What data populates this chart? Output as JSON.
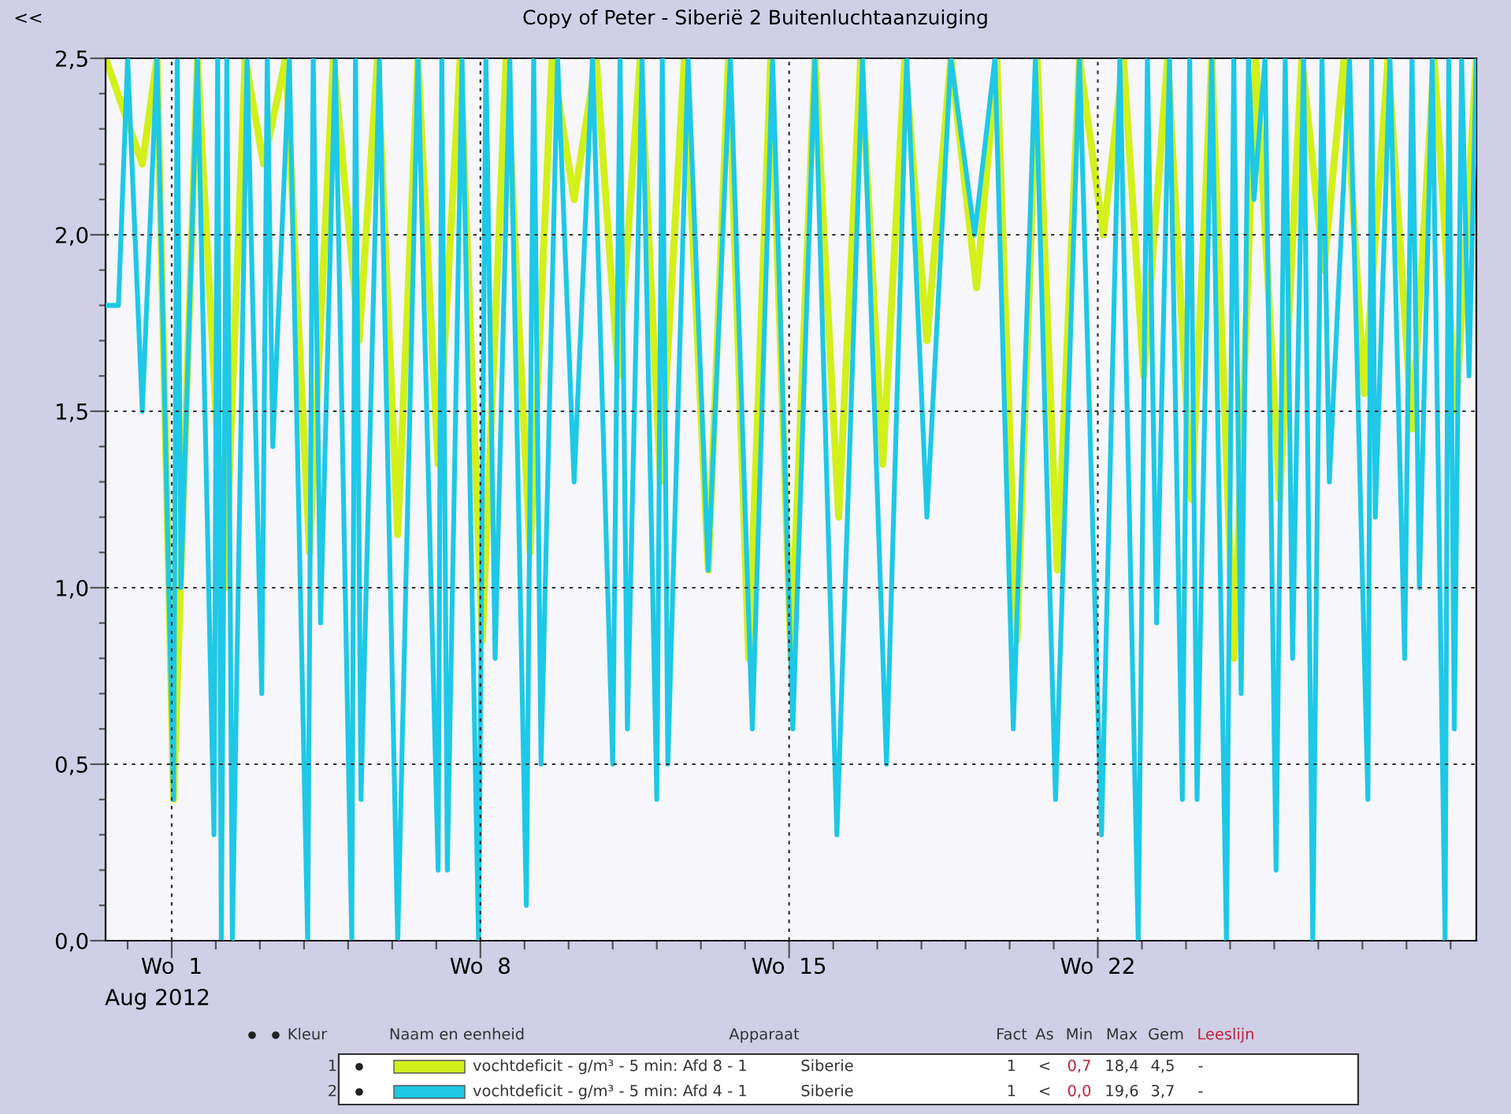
{
  "chart_data": {
    "type": "line",
    "title": "Copy of Peter - Siberië 2 Buitenluchtaanzuiging",
    "xlim": [
      "2012-07-30T12:00",
      "2012-08-30T14:00"
    ],
    "ylim": [
      0,
      2.5
    ],
    "xticks": [
      {
        "value": "2012-07-31",
        "label": null
      },
      {
        "value": "2012-08-01",
        "label": "Wo  1"
      },
      {
        "value": "2012-08-02",
        "label": null
      },
      {
        "value": "2012-08-03",
        "label": null
      },
      {
        "value": "2012-08-04",
        "label": null
      },
      {
        "value": "2012-08-05",
        "label": null
      },
      {
        "value": "2012-08-06",
        "label": null
      },
      {
        "value": "2012-08-07",
        "label": null
      },
      {
        "value": "2012-08-08",
        "label": "Wo  8"
      },
      {
        "value": "2012-08-09",
        "label": null
      },
      {
        "value": "2012-08-10",
        "label": null
      },
      {
        "value": "2012-08-11",
        "label": null
      },
      {
        "value": "2012-08-12",
        "label": null
      },
      {
        "value": "2012-08-13",
        "label": null
      },
      {
        "value": "2012-08-14",
        "label": null
      },
      {
        "value": "2012-08-15",
        "label": "Wo  15"
      },
      {
        "value": "2012-08-16",
        "label": null
      },
      {
        "value": "2012-08-17",
        "label": null
      },
      {
        "value": "2012-08-18",
        "label": null
      },
      {
        "value": "2012-08-19",
        "label": null
      },
      {
        "value": "2012-08-20",
        "label": null
      },
      {
        "value": "2012-08-21",
        "label": null
      },
      {
        "value": "2012-08-22",
        "label": "Wo  22"
      },
      {
        "value": "2012-08-23",
        "label": null
      },
      {
        "value": "2012-08-24",
        "label": null
      },
      {
        "value": "2012-08-25",
        "label": null
      },
      {
        "value": "2012-08-26",
        "label": null
      },
      {
        "value": "2012-08-27",
        "label": null
      },
      {
        "value": "2012-08-28",
        "label": null
      },
      {
        "value": "2012-08-29",
        "label": null
      },
      {
        "value": "2012-08-30",
        "label": null
      }
    ],
    "yticks": [
      {
        "value": 0,
        "label": "0,0"
      },
      {
        "value": 0.1,
        "label": null
      },
      {
        "value": 0.2,
        "label": null
      },
      {
        "value": 0.3,
        "label": null
      },
      {
        "value": 0.4,
        "label": null
      },
      {
        "value": 0.5,
        "label": "0,5"
      },
      {
        "value": 0.6,
        "label": null
      },
      {
        "value": 0.7,
        "label": null
      },
      {
        "value": 0.8,
        "label": null
      },
      {
        "value": 0.9,
        "label": null
      },
      {
        "value": 1.0,
        "label": "1,0"
      },
      {
        "value": 1.1,
        "label": null
      },
      {
        "value": 1.2,
        "label": null
      },
      {
        "value": 1.3,
        "label": null
      },
      {
        "value": 1.4,
        "label": null
      },
      {
        "value": 1.5,
        "label": "1,5"
      },
      {
        "value": 1.6,
        "label": null
      },
      {
        "value": 1.7,
        "label": null
      },
      {
        "value": 1.8,
        "label": null
      },
      {
        "value": 1.9,
        "label": null
      },
      {
        "value": 2.0,
        "label": "2,0"
      },
      {
        "value": 2.1,
        "label": null
      },
      {
        "value": 2.2,
        "label": null
      },
      {
        "value": 2.3,
        "label": null
      },
      {
        "value": 2.4,
        "label": null
      },
      {
        "value": 2.5,
        "label": "2,5"
      }
    ],
    "grid": true,
    "legend": "bottom",
    "annotations": [
      "<<",
      "Aug 2012",
      "Kleur",
      "Naam en eenheid",
      "Apparaat",
      "Fact",
      "As",
      "Min",
      "Max",
      "Gem",
      "Leeslijn",
      "1",
      "Siberie",
      "1",
      "<",
      "0,7",
      "18,4",
      "4,5",
      "-",
      "2",
      "Siberie",
      "1",
      "<",
      "0,0",
      "19,6",
      "3,7",
      "-"
    ],
    "series": [
      {
        "name": "vochtdeficit - g/m³ - 5 min: Afd 8 - 1",
        "color": "#d2f01a",
        "x": [
          "2012-07-30T12:00",
          "2012-07-31T08:00",
          "2012-07-31T16:00",
          "2012-08-01T01:00",
          "2012-08-01T14:00",
          "2012-08-02T05:00",
          "2012-08-02T16:00",
          "2012-08-03T02:00",
          "2012-08-03T14:00",
          "2012-08-04T03:00",
          "2012-08-04T16:00",
          "2012-08-05T06:00",
          "2012-08-05T16:00",
          "2012-08-06T03:00",
          "2012-08-06T14:00",
          "2012-08-07T01:00",
          "2012-08-07T13:00",
          "2012-08-08T01:00",
          "2012-08-08T14:00",
          "2012-08-09T03:00",
          "2012-08-09T15:00",
          "2012-08-10T03:00",
          "2012-08-10T15:00",
          "2012-08-11T03:00",
          "2012-08-11T15:00",
          "2012-08-12T02:00",
          "2012-08-12T15:00",
          "2012-08-13T04:00",
          "2012-08-13T15:00",
          "2012-08-14T02:00",
          "2012-08-14T14:00",
          "2012-08-15T01:00",
          "2012-08-15T14:00",
          "2012-08-16T03:00",
          "2012-08-16T15:00",
          "2012-08-17T03:00",
          "2012-08-17T15:00",
          "2012-08-18T03:00",
          "2012-08-18T16:00",
          "2012-08-19T06:00",
          "2012-08-19T17:00",
          "2012-08-20T04:00",
          "2012-08-20T15:00",
          "2012-08-21T02:00",
          "2012-08-21T14:00",
          "2012-08-22T03:00",
          "2012-08-22T14:00",
          "2012-08-23T01:00",
          "2012-08-23T14:00",
          "2012-08-24T03:00",
          "2012-08-24T14:00",
          "2012-08-25T02:00",
          "2012-08-25T14:00",
          "2012-08-26T03:00",
          "2012-08-26T15:00",
          "2012-08-27T03:00",
          "2012-08-27T14:00",
          "2012-08-28T01:00",
          "2012-08-28T14:00",
          "2012-08-29T03:00",
          "2012-08-29T15:00",
          "2012-08-30T03:00",
          "2012-08-30T14:00"
        ],
        "values": [
          2.5,
          2.2,
          2.5,
          0.4,
          2.5,
          1.0,
          2.5,
          2.2,
          2.5,
          1.1,
          2.5,
          1.7,
          2.5,
          1.15,
          2.5,
          1.35,
          2.5,
          0.85,
          2.5,
          1.1,
          2.5,
          2.1,
          2.5,
          1.6,
          2.5,
          1.3,
          2.5,
          1.05,
          2.5,
          0.8,
          2.5,
          0.8,
          2.5,
          1.2,
          2.5,
          1.35,
          2.5,
          1.7,
          2.5,
          1.85,
          2.5,
          0.85,
          2.5,
          1.05,
          2.5,
          2.0,
          2.5,
          1.6,
          2.5,
          1.25,
          2.5,
          0.8,
          2.5,
          1.25,
          2.5,
          1.9,
          2.5,
          1.55,
          2.5,
          1.45,
          2.5,
          1.5,
          2.5
        ]
      },
      {
        "name": "vochtdeficit - g/m³ - 5 min: Afd 4 - 1",
        "color": "#1ec8e6",
        "x": [
          "2012-07-30T12:00",
          "2012-07-30T19:00",
          "2012-07-31T00:00",
          "2012-07-31T08:00",
          "2012-07-31T16:00",
          "2012-08-01T01:00",
          "2012-08-01T03:00",
          "2012-08-01T05:00",
          "2012-08-01T14:00",
          "2012-08-01T23:00",
          "2012-08-02T01:00",
          "2012-08-02T03:00",
          "2012-08-02T06:00",
          "2012-08-02T09:00",
          "2012-08-02T17:00",
          "2012-08-03T01:00",
          "2012-08-03T04:00",
          "2012-08-03T07:00",
          "2012-08-03T16:00",
          "2012-08-04T02:00",
          "2012-08-04T05:00",
          "2012-08-04T09:00",
          "2012-08-04T17:00",
          "2012-08-05T02:00",
          "2012-08-05T04:00",
          "2012-08-05T07:00",
          "2012-08-05T17:00",
          "2012-08-06T03:00",
          "2012-08-06T14:00",
          "2012-08-07T01:00",
          "2012-08-07T03:00",
          "2012-08-07T06:00",
          "2012-08-07T14:00",
          "2012-08-07T23:00",
          "2012-08-08T03:00",
          "2012-08-08T08:00",
          "2012-08-08T16:00",
          "2012-08-09T01:00",
          "2012-08-09T05:00",
          "2012-08-09T09:00",
          "2012-08-09T18:00",
          "2012-08-10T03:00",
          "2012-08-10T13:00",
          "2012-08-11T00:00",
          "2012-08-11T04:00",
          "2012-08-11T08:00",
          "2012-08-11T16:00",
          "2012-08-12T00:00",
          "2012-08-12T03:00",
          "2012-08-12T06:00",
          "2012-08-12T17:00",
          "2012-08-13T04:00",
          "2012-08-13T16:00",
          "2012-08-14T04:00",
          "2012-08-14T15:00",
          "2012-08-15T02:00",
          "2012-08-15T14:00",
          "2012-08-16T02:00",
          "2012-08-16T16:00",
          "2012-08-17T05:00",
          "2012-08-17T16:00",
          "2012-08-18T03:00",
          "2012-08-18T16:00",
          "2012-08-19T05:00",
          "2012-08-19T16:00",
          "2012-08-20T02:00",
          "2012-08-20T14:00",
          "2012-08-21T01:00",
          "2012-08-21T14:00",
          "2012-08-22T02:00",
          "2012-08-22T12:00",
          "2012-08-22T22:00",
          "2012-08-23T03:00",
          "2012-08-23T08:00",
          "2012-08-23T15:00",
          "2012-08-23T22:00",
          "2012-08-24T02:00",
          "2012-08-24T06:00",
          "2012-08-24T14:00",
          "2012-08-24T22:00",
          "2012-08-25T02:00",
          "2012-08-25T06:00",
          "2012-08-25T10:00",
          "2012-08-25T13:00",
          "2012-08-25T19:00",
          "2012-08-26T01:00",
          "2012-08-26T06:00",
          "2012-08-26T10:00",
          "2012-08-26T16:00",
          "2012-08-26T21:00",
          "2012-08-27T02:00",
          "2012-08-27T06:00",
          "2012-08-27T17:00",
          "2012-08-28T03:00",
          "2012-08-28T05:00",
          "2012-08-28T07:00",
          "2012-08-28T15:00",
          "2012-08-28T23:00",
          "2012-08-29T03:00",
          "2012-08-29T07:00",
          "2012-08-29T14:00",
          "2012-08-29T21:00",
          "2012-08-29T23:00",
          "2012-08-30T02:00",
          "2012-08-30T06:00",
          "2012-08-30T10:00",
          "2012-08-30T14:00"
        ],
        "values": [
          1.8,
          1.8,
          2.5,
          1.5,
          2.5,
          0.4,
          2.5,
          1.0,
          2.5,
          0.3,
          2.5,
          0.0,
          2.5,
          0.0,
          2.5,
          0.7,
          2.5,
          1.4,
          2.5,
          0.0,
          2.5,
          0.9,
          2.5,
          0.0,
          2.5,
          0.4,
          2.5,
          0.0,
          2.5,
          0.2,
          2.5,
          0.2,
          2.5,
          0.0,
          2.5,
          0.8,
          2.5,
          0.1,
          2.5,
          0.5,
          2.5,
          1.3,
          2.5,
          0.5,
          2.5,
          0.6,
          2.5,
          0.4,
          2.5,
          0.5,
          2.5,
          1.05,
          2.5,
          0.6,
          2.5,
          0.6,
          2.5,
          0.3,
          2.5,
          0.5,
          2.5,
          1.2,
          2.5,
          2.0,
          2.5,
          0.6,
          2.5,
          0.4,
          2.5,
          0.3,
          2.5,
          0.0,
          2.5,
          0.9,
          2.5,
          0.4,
          2.5,
          0.4,
          2.5,
          0.0,
          2.5,
          0.7,
          2.5,
          2.1,
          2.5,
          0.2,
          2.5,
          0.8,
          2.5,
          0.0,
          2.5,
          1.3,
          2.5,
          0.4,
          2.5,
          1.2,
          2.5,
          0.8,
          2.5,
          1.0,
          2.5,
          0.0,
          2.5,
          0.6,
          2.5,
          1.6,
          2.5
        ]
      }
    ]
  }
}
